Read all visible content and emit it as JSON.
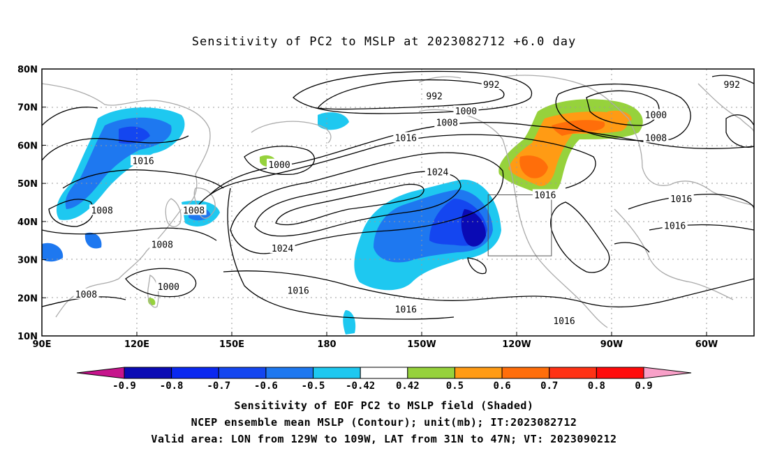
{
  "title": "Sensitivity of PC2 to MSLP at 2023082712 +6.0 day",
  "map": {
    "lat_ticks": [
      {
        "lat": 80,
        "label": "80N"
      },
      {
        "lat": 70,
        "label": "70N"
      },
      {
        "lat": 60,
        "label": "60N"
      },
      {
        "lat": 50,
        "label": "50N"
      },
      {
        "lat": 40,
        "label": "40N"
      },
      {
        "lat": 30,
        "label": "30N"
      },
      {
        "lat": 20,
        "label": "20N"
      },
      {
        "lat": 10,
        "label": "10N"
      }
    ],
    "lon_ticks": [
      {
        "lon": 90,
        "label": "90E"
      },
      {
        "lon": 120,
        "label": "120E"
      },
      {
        "lon": 150,
        "label": "150E"
      },
      {
        "lon": 180,
        "label": "180"
      },
      {
        "lon": 210,
        "label": "150W"
      },
      {
        "lon": 240,
        "label": "120W"
      },
      {
        "lon": 270,
        "label": "90W"
      },
      {
        "lon": 300,
        "label": "60W"
      }
    ],
    "valid_box": {
      "lon_min": 231,
      "lon_max": 251,
      "lat_min": 31,
      "lat_max": 47
    },
    "contour_labels": [
      {
        "text": "992",
        "lon": 232,
        "lat": 76
      },
      {
        "text": "992",
        "lon": 214,
        "lat": 73
      },
      {
        "text": "992",
        "lon": 308,
        "lat": 76
      },
      {
        "text": "1000",
        "lon": 224,
        "lat": 69
      },
      {
        "text": "1000",
        "lon": 165,
        "lat": 55
      },
      {
        "text": "1000",
        "lon": 284,
        "lat": 68
      },
      {
        "text": "1000",
        "lon": 130,
        "lat": 23
      },
      {
        "text": "1008",
        "lon": 218,
        "lat": 66
      },
      {
        "text": "1008",
        "lon": 284,
        "lat": 62
      },
      {
        "text": "1008",
        "lon": 109,
        "lat": 43
      },
      {
        "text": "1008",
        "lon": 138,
        "lat": 43
      },
      {
        "text": "1008",
        "lon": 128,
        "lat": 34
      },
      {
        "text": "1008",
        "lon": 104,
        "lat": 21
      },
      {
        "text": "1016",
        "lon": 205,
        "lat": 62
      },
      {
        "text": "1016",
        "lon": 122,
        "lat": 56
      },
      {
        "text": "1016",
        "lon": 249,
        "lat": 47
      },
      {
        "text": "1016",
        "lon": 292,
        "lat": 46
      },
      {
        "text": "1016",
        "lon": 290,
        "lat": 39
      },
      {
        "text": "1016",
        "lon": 171,
        "lat": 22
      },
      {
        "text": "1016",
        "lon": 205,
        "lat": 17
      },
      {
        "text": "1016",
        "lon": 255,
        "lat": 14
      },
      {
        "text": "1024",
        "lon": 215,
        "lat": 53
      },
      {
        "text": "1024",
        "lon": 166,
        "lat": 33
      }
    ]
  },
  "colorbar": {
    "colors": [
      "#c6148c",
      "#0a0ab4",
      "#0a28f0",
      "#1446f0",
      "#1e78f0",
      "#1ec8f0",
      "#ffffff",
      "#96d23c",
      "#ff9b14",
      "#ff6e0a",
      "#ff3214",
      "#ff0a0a",
      "#f8a0c8"
    ],
    "labels": [
      "-0.9",
      "-0.8",
      "-0.7",
      "-0.6",
      "-0.5",
      "-0.42",
      "0.42",
      "0.5",
      "0.6",
      "0.7",
      "0.8",
      "0.9"
    ]
  },
  "captions": {
    "line1": "Sensitivity of EOF PC2 to MSLP field (Shaded)",
    "line2": "NCEP ensemble mean MSLP (Contour); unit(mb); IT:2023082712",
    "line3": "Valid area: LON from 129W to 109W, LAT from 31N to 47N; VT: 2023090212"
  }
}
